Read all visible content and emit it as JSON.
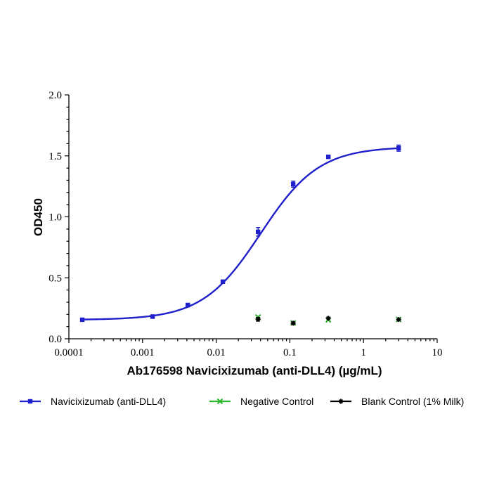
{
  "chart_data": {
    "type": "scatter",
    "xlabel": "Ab176598 Navicixizumab (anti-DLL4) (µg/mL)",
    "ylabel": "OD450",
    "xscale": "log",
    "xlim": [
      0.0001,
      10
    ],
    "ylim": [
      0,
      2.0
    ],
    "xticks": [
      "0.0001",
      "0.001",
      "0.01",
      "0.1",
      "1",
      "10"
    ],
    "yticks": [
      "0.0",
      "0.5",
      "1.0",
      "1.5",
      "2.0"
    ],
    "grid": false,
    "legend_position": "bottom",
    "series": [
      {
        "name": "Navicixizumab (anti-DLL4)",
        "color": "#1f1fcc",
        "marker": "square",
        "fit": "4PL sigmoid",
        "x": [
          0.000152,
          0.00137,
          0.00412,
          0.0123,
          0.037,
          0.111,
          0.333,
          3.0
        ],
        "y": [
          0.156,
          0.182,
          0.276,
          0.468,
          0.877,
          1.268,
          1.492,
          1.563
        ],
        "err": [
          0.008,
          0.008,
          0.015,
          0.008,
          0.035,
          0.025,
          0.01,
          0.025
        ]
      },
      {
        "name": "Negative Control",
        "color": "#2db52d",
        "marker": "x",
        "x": [
          0.037,
          0.111,
          0.333,
          3.0
        ],
        "y": [
          0.178,
          0.13,
          0.155,
          0.158
        ],
        "err": [
          0.0,
          0.0,
          0.0,
          0.0
        ]
      },
      {
        "name": "Blank Control (1% Milk)",
        "color": "#000000",
        "marker": "star",
        "x": [
          0.037,
          0.111,
          0.333,
          3.0
        ],
        "y": [
          0.16,
          0.128,
          0.168,
          0.158
        ],
        "err": [
          0.015,
          0.01,
          0.0,
          0.0
        ]
      }
    ]
  }
}
